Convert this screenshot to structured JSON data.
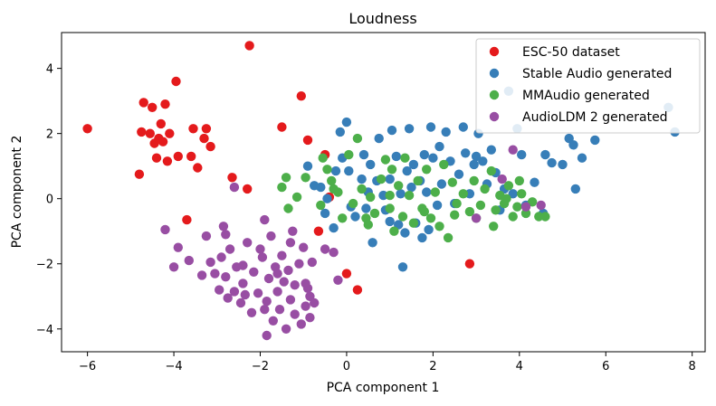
{
  "chart_data": {
    "type": "scatter",
    "title": "Loudness",
    "xlabel": "PCA component 1",
    "ylabel": "PCA component 2",
    "xlim": [
      -6.6,
      8.3
    ],
    "ylim": [
      -4.7,
      5.1
    ],
    "xticks": [
      -6,
      -4,
      -2,
      0,
      2,
      4,
      6,
      8
    ],
    "xtick_labels": [
      "−6",
      "−4",
      "−2",
      "0",
      "2",
      "4",
      "6",
      "8"
    ],
    "yticks": [
      -4,
      -2,
      0,
      2,
      4
    ],
    "ytick_labels": [
      "−4",
      "−2",
      "0",
      "2",
      "4"
    ],
    "grid": false,
    "legend_position": "top-right",
    "series": [
      {
        "name": "ESC-50 dataset",
        "color": "#e41a1c",
        "points": [
          [
            -6.0,
            2.15
          ],
          [
            -4.8,
            0.75
          ],
          [
            -4.75,
            2.05
          ],
          [
            -4.7,
            2.95
          ],
          [
            -4.55,
            2.0
          ],
          [
            -4.5,
            2.8
          ],
          [
            -4.45,
            1.7
          ],
          [
            -4.4,
            1.25
          ],
          [
            -4.35,
            1.85
          ],
          [
            -4.3,
            2.3
          ],
          [
            -4.25,
            1.75
          ],
          [
            -4.2,
            2.9
          ],
          [
            -4.15,
            1.15
          ],
          [
            -4.1,
            2.0
          ],
          [
            -3.95,
            3.6
          ],
          [
            -3.9,
            1.3
          ],
          [
            -3.6,
            1.3
          ],
          [
            -3.55,
            2.15
          ],
          [
            -3.45,
            0.95
          ],
          [
            -3.3,
            1.85
          ],
          [
            -3.25,
            2.15
          ],
          [
            -3.15,
            1.6
          ],
          [
            -3.7,
            -0.65
          ],
          [
            -2.65,
            0.65
          ],
          [
            -2.3,
            0.3
          ],
          [
            -2.25,
            4.7
          ],
          [
            -1.5,
            2.2
          ],
          [
            -1.05,
            3.15
          ],
          [
            -0.9,
            1.8
          ],
          [
            -0.65,
            -1.0
          ],
          [
            -0.5,
            1.35
          ],
          [
            -0.4,
            0.05
          ],
          [
            0.0,
            -2.3
          ],
          [
            0.25,
            -2.8
          ],
          [
            2.85,
            -2.0
          ]
        ]
      },
      {
        "name": "Stable Audio generated",
        "color": "#377eb8",
        "points": [
          [
            -0.9,
            1.0
          ],
          [
            -0.75,
            0.4
          ],
          [
            -0.6,
            0.35
          ],
          [
            -0.5,
            -0.45
          ],
          [
            -0.45,
            0.0
          ],
          [
            -0.3,
            -0.9
          ],
          [
            -0.25,
            0.85
          ],
          [
            -0.15,
            2.05
          ],
          [
            -0.1,
            1.25
          ],
          [
            0.0,
            2.35
          ],
          [
            0.05,
            0.85
          ],
          [
            0.1,
            -0.25
          ],
          [
            0.2,
            -0.55
          ],
          [
            0.35,
            0.6
          ],
          [
            0.4,
            1.35
          ],
          [
            0.45,
            -0.3
          ],
          [
            0.5,
            0.2
          ],
          [
            0.55,
            1.05
          ],
          [
            0.6,
            -1.35
          ],
          [
            0.7,
            0.55
          ],
          [
            0.75,
            1.85
          ],
          [
            0.85,
            0.1
          ],
          [
            0.9,
            -0.35
          ],
          [
            1.0,
            0.6
          ],
          [
            1.05,
            2.1
          ],
          [
            1.15,
            1.3
          ],
          [
            1.2,
            -0.8
          ],
          [
            1.25,
            0.15
          ],
          [
            1.3,
            -2.1
          ],
          [
            1.35,
            -1.05
          ],
          [
            1.4,
            0.85
          ],
          [
            1.45,
            2.15
          ],
          [
            1.5,
            0.35
          ],
          [
            1.55,
            1.05
          ],
          [
            1.6,
            -0.75
          ],
          [
            1.7,
            0.55
          ],
          [
            1.75,
            -1.2
          ],
          [
            1.8,
            1.35
          ],
          [
            1.85,
            0.2
          ],
          [
            1.9,
            -0.95
          ],
          [
            1.95,
            2.2
          ],
          [
            2.0,
            1.25
          ],
          [
            2.1,
            -0.2
          ],
          [
            2.15,
            1.6
          ],
          [
            2.2,
            0.45
          ],
          [
            2.3,
            2.05
          ],
          [
            2.4,
            1.15
          ],
          [
            2.5,
            -0.15
          ],
          [
            2.6,
            0.75
          ],
          [
            2.7,
            2.2
          ],
          [
            2.75,
            1.4
          ],
          [
            2.85,
            0.15
          ],
          [
            2.95,
            1.05
          ],
          [
            3.05,
            2.0
          ],
          [
            3.15,
            1.15
          ],
          [
            3.25,
            0.45
          ],
          [
            3.35,
            1.5
          ],
          [
            3.45,
            0.8
          ],
          [
            3.55,
            -0.35
          ],
          [
            3.65,
            0.3
          ],
          [
            3.75,
            3.3
          ],
          [
            3.85,
            0.15
          ],
          [
            3.95,
            2.15
          ],
          [
            4.05,
            1.35
          ],
          [
            4.15,
            -0.2
          ],
          [
            4.35,
            0.5
          ],
          [
            4.55,
            -0.45
          ],
          [
            4.6,
            1.35
          ],
          [
            4.75,
            1.1
          ],
          [
            5.0,
            1.05
          ],
          [
            5.15,
            1.85
          ],
          [
            5.25,
            1.65
          ],
          [
            5.3,
            0.3
          ],
          [
            5.45,
            1.25
          ],
          [
            5.75,
            1.8
          ],
          [
            7.45,
            2.8
          ],
          [
            7.6,
            2.05
          ],
          [
            3.0,
            1.3
          ],
          [
            1.0,
            -0.7
          ]
        ]
      },
      {
        "name": "MMAudio generated",
        "color": "#4daf4a",
        "points": [
          [
            -1.5,
            0.35
          ],
          [
            -1.4,
            0.65
          ],
          [
            -1.35,
            -0.3
          ],
          [
            -1.15,
            0.05
          ],
          [
            -0.95,
            0.65
          ],
          [
            -0.55,
            1.25
          ],
          [
            -0.45,
            0.9
          ],
          [
            -0.35,
            0.55
          ],
          [
            -0.2,
            0.2
          ],
          [
            -0.1,
            -0.6
          ],
          [
            0.05,
            1.35
          ],
          [
            0.15,
            -0.15
          ],
          [
            0.25,
            1.85
          ],
          [
            0.35,
            0.3
          ],
          [
            0.45,
            -0.6
          ],
          [
            0.55,
            0.05
          ],
          [
            0.65,
            -0.45
          ],
          [
            0.8,
            0.6
          ],
          [
            0.9,
            1.2
          ],
          [
            1.0,
            -0.3
          ],
          [
            1.05,
            0.9
          ],
          [
            1.1,
            -1.0
          ],
          [
            1.2,
            0.4
          ],
          [
            1.3,
            -0.55
          ],
          [
            1.35,
            1.25
          ],
          [
            1.45,
            0.1
          ],
          [
            1.55,
            -0.75
          ],
          [
            1.65,
            0.55
          ],
          [
            1.75,
            -0.3
          ],
          [
            1.85,
            0.9
          ],
          [
            1.95,
            -0.6
          ],
          [
            2.05,
            0.2
          ],
          [
            2.15,
            -0.85
          ],
          [
            2.25,
            1.05
          ],
          [
            2.35,
            -1.2
          ],
          [
            2.45,
            0.5
          ],
          [
            2.55,
            -0.15
          ],
          [
            2.7,
            0.15
          ],
          [
            2.85,
            -0.4
          ],
          [
            2.95,
            0.55
          ],
          [
            3.1,
            -0.2
          ],
          [
            3.2,
            0.3
          ],
          [
            3.35,
            0.85
          ],
          [
            3.45,
            -0.35
          ],
          [
            3.55,
            0.1
          ],
          [
            3.65,
            -0.15
          ],
          [
            3.75,
            0.4
          ],
          [
            3.85,
            -0.55
          ],
          [
            3.95,
            -0.25
          ],
          [
            4.05,
            0.15
          ],
          [
            4.15,
            -0.45
          ],
          [
            4.3,
            -0.1
          ],
          [
            4.45,
            -0.55
          ],
          [
            4.6,
            -0.55
          ],
          [
            3.4,
            -0.85
          ],
          [
            3.0,
            -0.6
          ],
          [
            2.5,
            -0.5
          ],
          [
            1.8,
            -0.4
          ],
          [
            1.0,
            0.1
          ],
          [
            0.5,
            -0.8
          ],
          [
            -0.6,
            -0.2
          ],
          [
            -0.3,
            0.3
          ],
          [
            4.0,
            0.55
          ],
          [
            3.7,
            0.0
          ]
        ]
      },
      {
        "name": "AudioLDM 2 generated",
        "color": "#984ea3",
        "points": [
          [
            -4.2,
            -0.95
          ],
          [
            -4.0,
            -2.1
          ],
          [
            -3.9,
            -1.5
          ],
          [
            -3.65,
            -1.9
          ],
          [
            -3.35,
            -2.35
          ],
          [
            -3.25,
            -1.15
          ],
          [
            -3.15,
            -1.95
          ],
          [
            -3.05,
            -2.3
          ],
          [
            -2.95,
            -2.8
          ],
          [
            -2.9,
            -1.8
          ],
          [
            -2.85,
            -0.85
          ],
          [
            -2.8,
            -2.4
          ],
          [
            -2.75,
            -3.05
          ],
          [
            -2.7,
            -1.55
          ],
          [
            -2.6,
            -2.85
          ],
          [
            -2.55,
            -2.1
          ],
          [
            -2.45,
            -3.2
          ],
          [
            -2.4,
            -2.6
          ],
          [
            -2.3,
            -1.35
          ],
          [
            -2.2,
            -3.5
          ],
          [
            -2.15,
            -2.25
          ],
          [
            -2.05,
            -2.9
          ],
          [
            -1.95,
            -1.8
          ],
          [
            -1.9,
            -0.65
          ],
          [
            -1.85,
            -3.15
          ],
          [
            -1.8,
            -2.45
          ],
          [
            -1.75,
            -1.15
          ],
          [
            -1.7,
            -3.75
          ],
          [
            -1.65,
            -2.1
          ],
          [
            -1.6,
            -2.85
          ],
          [
            -1.55,
            -3.4
          ],
          [
            -1.5,
            -1.75
          ],
          [
            -1.45,
            -2.55
          ],
          [
            -1.4,
            -4.0
          ],
          [
            -1.35,
            -2.2
          ],
          [
            -1.3,
            -3.1
          ],
          [
            -1.25,
            -1.0
          ],
          [
            -1.2,
            -3.55
          ],
          [
            -1.1,
            -2.0
          ],
          [
            -1.05,
            -3.85
          ],
          [
            -1.0,
            -1.5
          ],
          [
            -0.95,
            -3.3
          ],
          [
            -0.9,
            -2.75
          ],
          [
            -0.85,
            -3.0
          ],
          [
            -0.8,
            -1.95
          ],
          [
            -0.75,
            -3.2
          ],
          [
            -0.5,
            -1.55
          ],
          [
            -0.3,
            -1.65
          ],
          [
            -0.2,
            -2.5
          ],
          [
            3.0,
            -0.6
          ],
          [
            3.6,
            0.6
          ],
          [
            3.85,
            1.5
          ],
          [
            4.15,
            -0.25
          ],
          [
            4.5,
            -0.2
          ],
          [
            -2.6,
            0.35
          ],
          [
            -2.8,
            -1.1
          ],
          [
            -1.6,
            -2.3
          ],
          [
            -2.0,
            -1.55
          ],
          [
            -1.85,
            -4.2
          ],
          [
            -1.3,
            -1.35
          ],
          [
            -2.35,
            -2.95
          ],
          [
            -0.85,
            -3.65
          ],
          [
            -1.9,
            -3.4
          ],
          [
            -2.4,
            -2.05
          ],
          [
            -1.2,
            -2.65
          ],
          [
            -0.95,
            -2.6
          ]
        ]
      }
    ]
  }
}
